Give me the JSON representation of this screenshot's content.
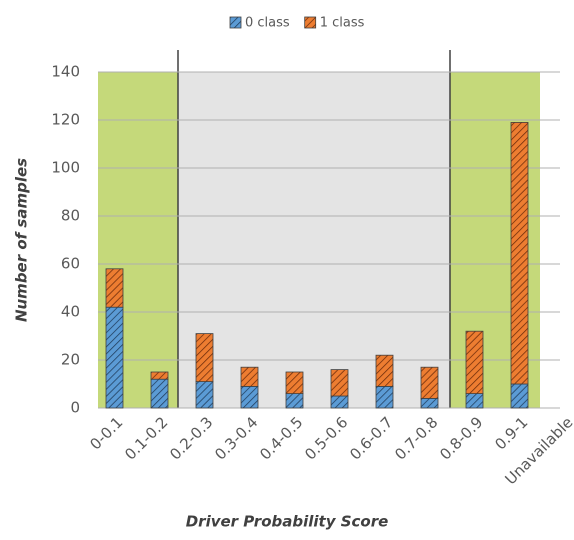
{
  "chart_data": {
    "type": "stacked-bar",
    "x_label": "Driver Probability Score",
    "y_label": "Number of samples",
    "categories": [
      "0-0.1",
      "0.1-0.2",
      "0.2-0.3",
      "0.3-0.4",
      "0.4-0.5",
      "0.5-0.6",
      "0.6-0.7",
      "0.7-0.8",
      "0.8-0.9",
      "0.9-1",
      "Unavailable"
    ],
    "series": [
      {
        "name": "0 class",
        "color": "#5b9bd5",
        "values": [
          42,
          12,
          11,
          9,
          6,
          5,
          9,
          4,
          6,
          10,
          null
        ]
      },
      {
        "name": "1 class",
        "color": "#ed7d31",
        "values": [
          16,
          3,
          20,
          8,
          9,
          11,
          13,
          13,
          26,
          109,
          null
        ]
      }
    ],
    "ylim": [
      0,
      140
    ],
    "yticks": [
      0,
      20,
      40,
      60,
      80,
      100,
      120,
      140
    ],
    "grid": true
  }
}
